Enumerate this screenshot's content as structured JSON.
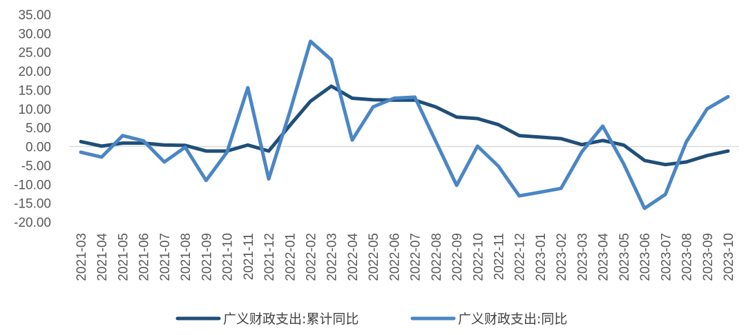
{
  "chart_data": {
    "type": "line",
    "title": "",
    "xlabel": "",
    "ylabel": "",
    "ylim": [
      -20,
      35
    ],
    "yticks": [
      "35.00",
      "30.00",
      "25.00",
      "20.00",
      "15.00",
      "10.00",
      "5.00",
      "0.00",
      "-5.00",
      "-10.00",
      "-15.00",
      "-20.00"
    ],
    "categories": [
      "2021-03",
      "2021-04",
      "2021-05",
      "2021-06",
      "2021-07",
      "2021-08",
      "2021-09",
      "2021-10",
      "2021-11",
      "2021-12",
      "2022-01",
      "2022-02",
      "2022-03",
      "2022-04",
      "2022-05",
      "2022-06",
      "2022-07",
      "2022-08",
      "2022-09",
      "2022-10",
      "2022-11",
      "2022-12",
      "2023-01",
      "2023-02",
      "2023-03",
      "2023-04",
      "2023-05",
      "2023-06",
      "2023-07",
      "2023-08",
      "2023-09",
      "2023-10"
    ],
    "series": [
      {
        "name": "广义财政支出:累计同比",
        "color": "#1f4e79",
        "values": [
          1.3,
          0.1,
          0.9,
          0.9,
          0.4,
          0.3,
          -1.2,
          -1.2,
          0.4,
          -1.2,
          5.5,
          12.0,
          16.0,
          12.8,
          12.4,
          12.3,
          12.3,
          10.5,
          7.8,
          7.4,
          5.8,
          2.9,
          2.5,
          2.1,
          0.5,
          1.6,
          0.4,
          -3.7,
          -4.8,
          -4.1,
          -2.4,
          -1.2
        ]
      },
      {
        "name": "广义财政支出:同比",
        "color": "#4a86c5",
        "values": [
          -1.5,
          -2.8,
          2.9,
          1.5,
          -4.1,
          -0.2,
          -9.0,
          -1.5,
          15.6,
          -8.6,
          9.0,
          27.9,
          23.0,
          1.7,
          10.5,
          12.8,
          13.1,
          1.4,
          -10.3,
          0.1,
          -5.2,
          -13.1,
          -12.1,
          -11.1,
          -1.4,
          5.4,
          -4.6,
          -16.4,
          -12.7,
          1.2,
          10.0,
          13.2
        ]
      }
    ],
    "grid": "zero-line only",
    "legend_position": "bottom"
  }
}
